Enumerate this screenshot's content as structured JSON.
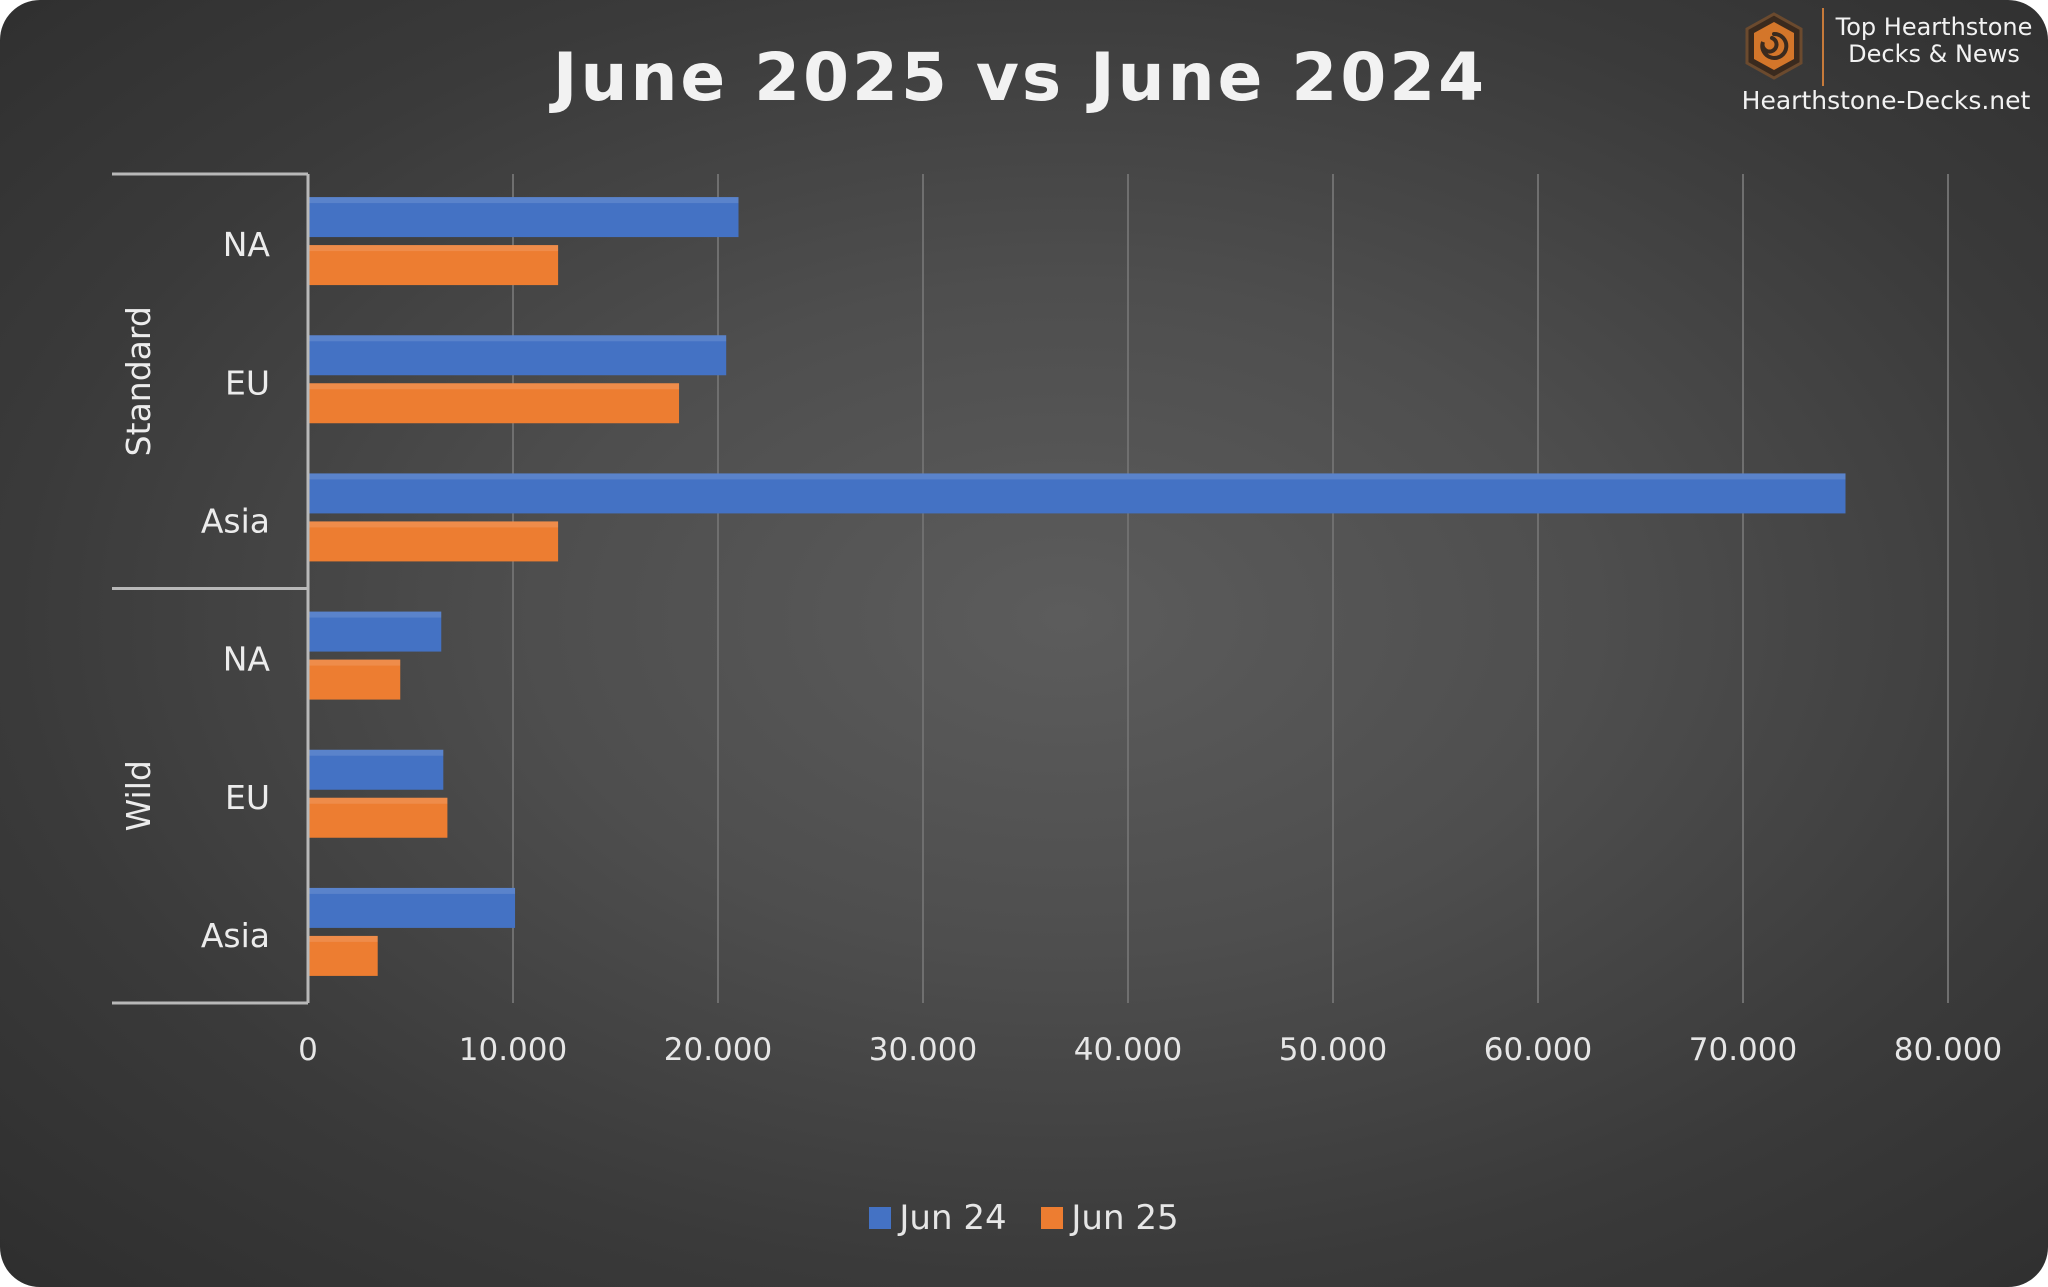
{
  "chart_data": {
    "type": "bar",
    "orientation": "horizontal",
    "title": "June 2025 vs June 2024",
    "groups": [
      {
        "label": "Standard",
        "categories": [
          "NA",
          "EU",
          "Asia"
        ]
      },
      {
        "label": "Wild",
        "categories": [
          "NA",
          "EU",
          "Asia"
        ]
      }
    ],
    "series": [
      {
        "name": "Jun 24",
        "color": "#4472c4",
        "values": [
          21000,
          20400,
          75000,
          6500,
          6600,
          10100
        ]
      },
      {
        "name": "Jun 25",
        "color": "#ed7d31",
        "values": [
          12200,
          18100,
          12200,
          4500,
          6800,
          3400
        ]
      }
    ],
    "xlim": [
      0,
      80000
    ],
    "xticks": [
      0,
      10000,
      20000,
      30000,
      40000,
      50000,
      60000,
      70000,
      80000
    ],
    "xtick_labels": [
      "0",
      "10.000",
      "20.000",
      "30.000",
      "40.000",
      "50.000",
      "60.000",
      "70.000",
      "80.000"
    ],
    "grid": "vertical",
    "legend": "bottom"
  },
  "watermark": {
    "brand_line1": "Top Hearthstone",
    "brand_line2": "Decks & News",
    "site": "Hearthstone-Decks.net",
    "icon": "hearthstone-logo-icon",
    "accent": "#c77a3a"
  }
}
